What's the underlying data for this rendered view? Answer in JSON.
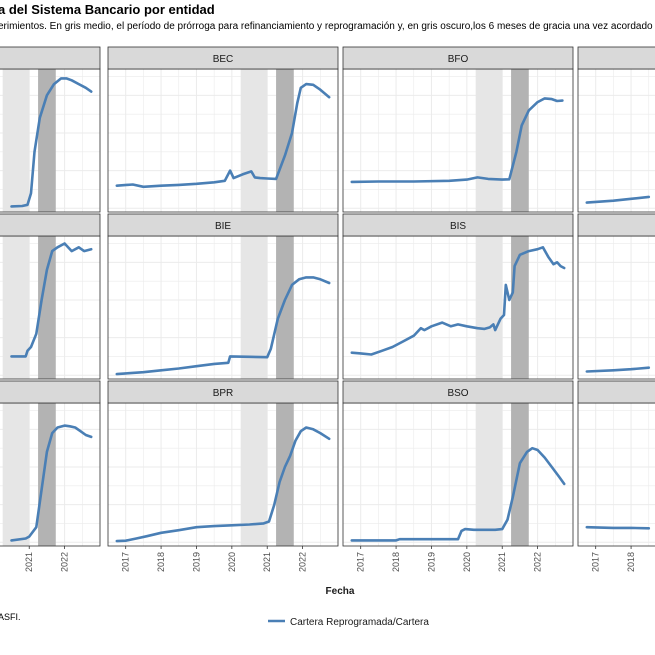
{
  "title": "a del Sistema Bancario por entidad",
  "subtitle": "erimientos. En gris medio, el período de prórroga para refinanciamiento y reprogramación y, en gris oscuro,los 6 meses de gracia una vez acordado el",
  "caption": "ASFI.",
  "colors": {
    "line": "#4A7FB5",
    "strip": "#D9D9D9",
    "band_medium": "#E6E6E6",
    "band_dark": "#B3B3B3",
    "grid": "#EBEBEB"
  },
  "chart_data": {
    "type": "line",
    "xlabel": "Fecha",
    "ylabel": "",
    "legend": {
      "position": "bottom",
      "entries": [
        "Cartera Reprogramada/Cartera"
      ]
    },
    "grid": true,
    "x_ticks": [
      2017,
      2018,
      2019,
      2020,
      2021,
      2022
    ],
    "shaded_periods": [
      {
        "shade": "medium",
        "start": 2020.25,
        "end": 2021.0
      },
      {
        "shade": "dark",
        "start": 2021.25,
        "end": 2021.75
      }
    ],
    "panels": [
      {
        "label": "",
        "x": [
          2020.5,
          2020.8,
          2020.95,
          2021.05,
          2021.15,
          2021.3,
          2021.5,
          2021.7,
          2021.9,
          2022.05,
          2022.2,
          2022.4,
          2022.6,
          2022.75
        ],
        "y": [
          0.5,
          0.6,
          0.9,
          4.0,
          15.0,
          24.0,
          30.0,
          33.0,
          34.5,
          34.5,
          34.0,
          33.0,
          32.0,
          31.0
        ]
      },
      {
        "label": "BEC",
        "x": [
          2016.75,
          2017.2,
          2017.5,
          2018.0,
          2018.5,
          2019.0,
          2019.5,
          2019.8,
          2019.95,
          2020.05,
          2020.3,
          2020.55,
          2020.65,
          2020.8,
          2021.0,
          2021.25,
          2021.5,
          2021.7,
          2021.85,
          2021.95,
          2022.1,
          2022.3,
          2022.5,
          2022.75
        ],
        "y": [
          6.0,
          6.3,
          5.7,
          6.0,
          6.2,
          6.5,
          6.9,
          7.3,
          10.0,
          8.0,
          9.0,
          9.8,
          8.2,
          8.0,
          7.9,
          7.8,
          14.0,
          20.0,
          28.0,
          32.0,
          33.0,
          32.8,
          31.5,
          29.5
        ]
      },
      {
        "label": "BFO",
        "x": [
          2016.75,
          2017.5,
          2018.5,
          2019.5,
          2020.0,
          2020.3,
          2020.6,
          2021.0,
          2021.2,
          2021.4,
          2021.55,
          2021.75,
          2022.0,
          2022.2,
          2022.4,
          2022.55,
          2022.7
        ],
        "y": [
          7.0,
          7.1,
          7.1,
          7.3,
          7.6,
          8.2,
          7.8,
          7.6,
          7.7,
          15.0,
          22.0,
          26.0,
          28.2,
          29.2,
          29.0,
          28.5,
          28.6
        ]
      },
      {
        "label": "",
        "x": [
          2016.75,
          2017.5,
          2018.0,
          2018.5
        ],
        "y": [
          1.5,
          2.0,
          2.5,
          3.0
        ]
      },
      {
        "label": "",
        "x": [
          2020.5,
          2020.9,
          2020.95,
          2021.05,
          2021.2,
          2021.35,
          2021.5,
          2021.65,
          2021.8,
          2022.0,
          2022.2,
          2022.4,
          2022.55,
          2022.75
        ],
        "y": [
          5.0,
          5.0,
          6.5,
          7.5,
          11.0,
          20.0,
          28.0,
          33.0,
          34.0,
          35.0,
          33.0,
          34.0,
          33.0,
          33.5
        ]
      },
      {
        "label": "BIE",
        "x": [
          2016.75,
          2017.0,
          2017.5,
          2018.0,
          2018.5,
          2019.0,
          2019.5,
          2019.9,
          2019.95,
          2020.5,
          2021.0,
          2021.1,
          2021.3,
          2021.5,
          2021.7,
          2021.9,
          2022.1,
          2022.3,
          2022.5,
          2022.75
        ],
        "y": [
          0.3,
          0.5,
          0.8,
          1.3,
          1.8,
          2.4,
          3.0,
          3.3,
          5.0,
          4.9,
          4.8,
          7.0,
          15.0,
          20.0,
          24.0,
          25.5,
          26.0,
          26.0,
          25.5,
          24.5
        ]
      },
      {
        "label": "BIS",
        "x": [
          2016.75,
          2017.0,
          2017.3,
          2017.6,
          2017.9,
          2018.2,
          2018.5,
          2018.7,
          2018.8,
          2019.0,
          2019.3,
          2019.55,
          2019.75,
          2020.0,
          2020.3,
          2020.5,
          2020.65,
          2020.75,
          2020.8,
          2020.95,
          2021.05,
          2021.1,
          2021.2,
          2021.3,
          2021.35,
          2021.5,
          2021.75,
          2022.0,
          2022.15,
          2022.3,
          2022.45,
          2022.55,
          2022.65,
          2022.75
        ],
        "y": [
          6.0,
          5.8,
          5.5,
          6.5,
          7.5,
          9.0,
          10.5,
          12.5,
          12.0,
          13.0,
          14.0,
          13.0,
          13.5,
          13.0,
          12.5,
          12.3,
          12.7,
          13.5,
          12.0,
          15.0,
          16.0,
          24.0,
          20.0,
          22.0,
          29.0,
          32.0,
          33.0,
          33.5,
          34.0,
          31.5,
          29.5,
          30.0,
          29.0,
          28.5
        ]
      },
      {
        "label": "",
        "x": [
          2016.75,
          2017.5,
          2018.0,
          2018.5
        ],
        "y": [
          1.0,
          1.3,
          1.6,
          2.0
        ]
      },
      {
        "label": "",
        "x": [
          2020.5,
          2020.9,
          2021.0,
          2021.2,
          2021.35,
          2021.5,
          2021.65,
          2021.8,
          2022.0,
          2022.15,
          2022.3,
          2022.45,
          2022.6,
          2022.75
        ],
        "y": [
          0.5,
          1.0,
          1.5,
          4.0,
          14.0,
          24.0,
          29.0,
          30.5,
          31.0,
          30.8,
          30.5,
          29.5,
          28.5,
          28.0
        ]
      },
      {
        "label": "BPR",
        "x": [
          2016.75,
          2017.0,
          2017.3,
          2017.6,
          2018.0,
          2018.5,
          2019.0,
          2019.5,
          2020.0,
          2020.5,
          2020.9,
          2021.05,
          2021.2,
          2021.35,
          2021.5,
          2021.65,
          2021.8,
          2021.95,
          2022.1,
          2022.3,
          2022.5,
          2022.75
        ],
        "y": [
          0.3,
          0.4,
          1.0,
          1.6,
          2.5,
          3.2,
          4.0,
          4.3,
          4.5,
          4.7,
          5.0,
          5.5,
          10.0,
          16.0,
          20.0,
          23.0,
          27.0,
          29.5,
          30.5,
          30.0,
          29.0,
          27.5
        ]
      },
      {
        "label": "BSO",
        "x": [
          2016.75,
          2017.5,
          2018.0,
          2018.1,
          2018.5,
          2019.0,
          2019.5,
          2019.75,
          2019.85,
          2019.95,
          2020.2,
          2020.5,
          2020.8,
          2021.0,
          2021.15,
          2021.3,
          2021.5,
          2021.7,
          2021.85,
          2022.0,
          2022.2,
          2022.4,
          2022.6,
          2022.75
        ],
        "y": [
          0.5,
          0.5,
          0.5,
          0.8,
          0.8,
          0.8,
          0.8,
          0.8,
          3.0,
          3.5,
          3.3,
          3.3,
          3.3,
          3.5,
          6.0,
          12.0,
          21.0,
          24.0,
          25.0,
          24.5,
          22.5,
          20.0,
          17.5,
          15.5
        ]
      },
      {
        "label": "",
        "x": [
          2016.75,
          2017.5,
          2018.0,
          2018.5
        ],
        "y": [
          4.0,
          3.8,
          3.8,
          3.7
        ]
      }
    ],
    "ylim": [
      -1,
      37
    ],
    "xlim": [
      2016.5,
      2023.0
    ]
  }
}
